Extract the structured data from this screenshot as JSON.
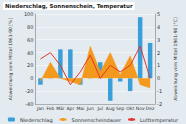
{
  "chart_data": {
    "type": "bar",
    "title": "Niederschlag, Sonnenschein, Temperatur",
    "ylabel": "Abweichung vom Mittel 1961-90 [%]",
    "y2label": "Abweichung vom Mittel 1961-90 [°C]",
    "categories": [
      "Jan",
      "Feb",
      "Mär",
      "Apr",
      "Mai",
      "Jun",
      "Jul",
      "Aug",
      "Sep",
      "Okt",
      "Nov",
      "Dez"
    ],
    "series": [
      {
        "name": "Niederschlag",
        "type": "bar",
        "color": "#3a9fd8",
        "values": [
          -10,
          12,
          45,
          45,
          -10,
          10,
          25,
          -35,
          -5,
          -20,
          95,
          55
        ]
      },
      {
        "name": "Sonnenscheindauer",
        "type": "area",
        "color": "#f39a1e",
        "values": [
          -5,
          25,
          0,
          -5,
          -10,
          50,
          10,
          40,
          5,
          35,
          -10,
          -15
        ]
      },
      {
        "name": "Lufttemperatur",
        "type": "line",
        "color": "#e2372a",
        "axis": "y2",
        "values": [
          1.5,
          2,
          1,
          -0.5,
          0.5,
          1.8,
          0,
          1,
          0.5,
          1,
          2.5,
          0
        ]
      }
    ],
    "ylim": [
      -40,
      100
    ],
    "yticks": [
      -40,
      -20,
      0,
      20,
      40,
      60,
      80,
      100
    ],
    "y2lim": [
      -2,
      5
    ],
    "y2ticks": [
      -2,
      -1,
      0,
      1,
      2,
      3,
      4,
      5
    ],
    "grid": true,
    "legend": "bottom"
  }
}
